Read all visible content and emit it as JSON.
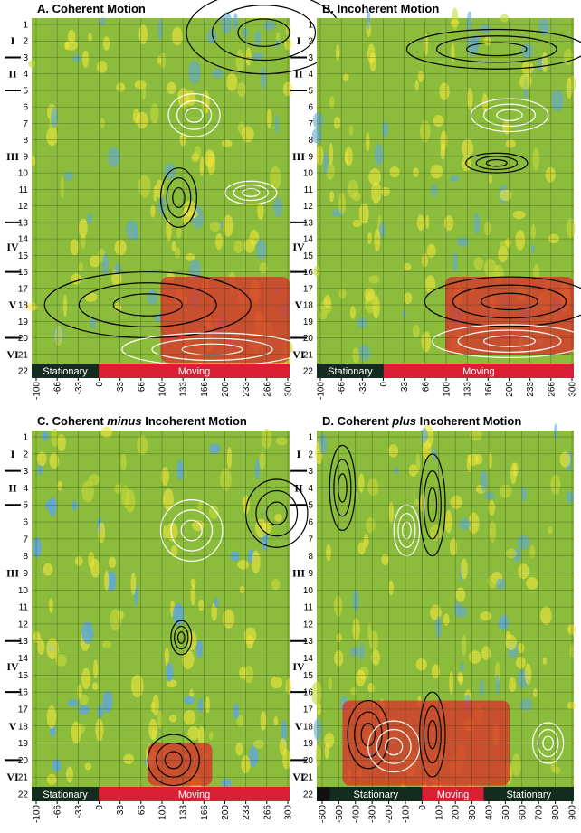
{
  "layers": [
    "I",
    "II",
    "III",
    "IV",
    "V",
    "VI"
  ],
  "rows": [
    "1",
    "2",
    "3",
    "4",
    "5",
    "6",
    "7",
    "8",
    "9",
    "10",
    "11",
    "12",
    "13",
    "14",
    "15",
    "16",
    "17",
    "18",
    "19",
    "20",
    "21",
    "22"
  ],
  "panels": [
    {
      "title": "A. Coherent Motion",
      "x_ticks": [
        "-100",
        "-66",
        "-33",
        "0",
        "33",
        "66",
        "100",
        "133",
        "166",
        "200",
        "233",
        "266",
        "300"
      ],
      "bar": [
        "Stationary",
        "Moving"
      ]
    },
    {
      "title": "B. Incoherent Motion",
      "x_ticks": [
        "-100",
        "-66",
        "-33",
        "0",
        "33",
        "66",
        "100",
        "133",
        "166",
        "200",
        "233",
        "266",
        "300"
      ],
      "bar": [
        "Stationary",
        "Moving"
      ]
    },
    {
      "title_parts": [
        "C. Coherent ",
        "minus",
        " Incoherent Motion"
      ],
      "x_ticks": [
        "-100",
        "-66",
        "-33",
        "0",
        "33",
        "66",
        "100",
        "133",
        "166",
        "200",
        "233",
        "266",
        "300"
      ],
      "bar": [
        "Stationary",
        "Moving"
      ]
    },
    {
      "title_parts": [
        "D. Coherent ",
        "plus",
        " Incoherent Motion"
      ],
      "x_ticks": [
        "-600",
        "-500",
        "-400",
        "-300",
        "-200",
        "-100",
        "0",
        "100",
        "200",
        "300",
        "400",
        "500",
        "600",
        "700",
        "800",
        "900"
      ],
      "bar": [
        "Stationary",
        "Moving",
        "Stationary"
      ]
    }
  ]
}
